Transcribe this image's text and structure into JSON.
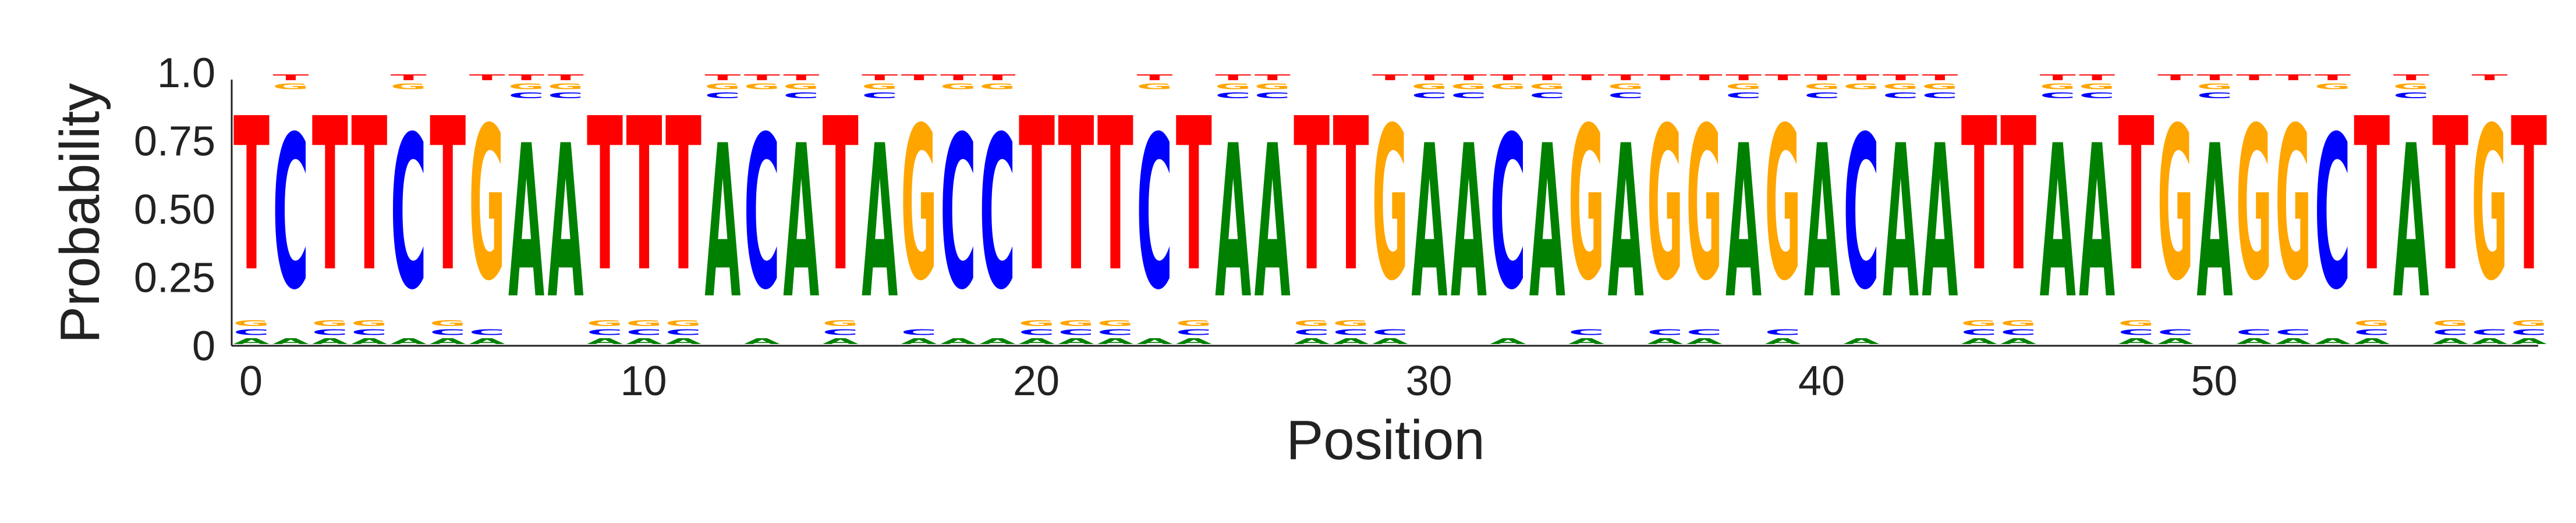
{
  "chart_data": {
    "type": "sequence-logo",
    "title": "",
    "xlabel": "Position",
    "ylabel": "Probability",
    "ylim": [
      0,
      1
    ],
    "y_ticks": [
      "0",
      "0.25",
      "0.50",
      "0.75",
      "1.0"
    ],
    "y_tick_values": [
      0,
      0.25,
      0.5,
      0.75,
      1.0
    ],
    "x_ticks": [
      "0",
      "10",
      "20",
      "30",
      "40",
      "50"
    ],
    "x_tick_values": [
      0,
      10,
      20,
      30,
      40,
      50
    ],
    "alphabet": [
      "A",
      "C",
      "G",
      "T"
    ],
    "colors": {
      "A": "#008000",
      "C": "#0000ff",
      "G": "#ffa500",
      "T": "#ff0000"
    },
    "consensus": "TCTTCTGAATTTACATAGCCTTTCTAATTGAACAGAGGAGACAATTAATGAGGCTATGT",
    "low_probability": 0.033,
    "high_probability": 0.9
  }
}
